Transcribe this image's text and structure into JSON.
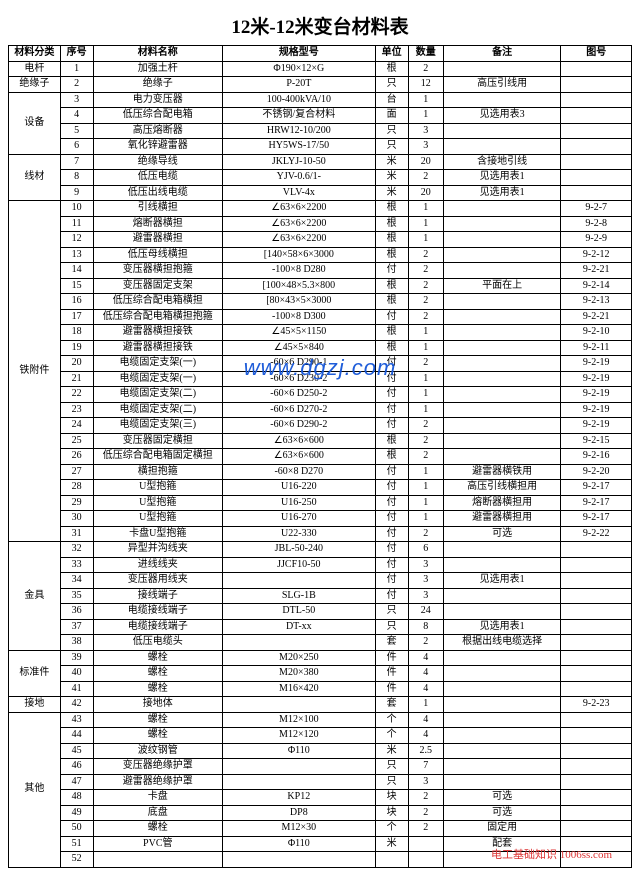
{
  "title": "12米-12米变台材料表",
  "headers": [
    "材料分类",
    "序号",
    "材料名称",
    "规格型号",
    "单位",
    "数量",
    "备注",
    "图号"
  ],
  "groups": [
    {
      "cat": "电杆",
      "rows": [
        [
          "1",
          "加强土杆",
          "Φ190×12×G",
          "根",
          "2",
          "",
          ""
        ]
      ]
    },
    {
      "cat": "绝缘子",
      "rows": [
        [
          "2",
          "绝缘子",
          "P-20T",
          "只",
          "12",
          "高压引线用",
          ""
        ]
      ]
    },
    {
      "cat": "设备",
      "rows": [
        [
          "3",
          "电力变压器",
          "100-400kVA/10",
          "台",
          "1",
          "",
          ""
        ],
        [
          "4",
          "低压综合配电箱",
          "不锈钢/复合材料",
          "面",
          "1",
          "见选用表3",
          ""
        ],
        [
          "5",
          "高压熔断器",
          "HRW12-10/200",
          "只",
          "3",
          "",
          ""
        ],
        [
          "6",
          "氧化锌避雷器",
          "HY5WS-17/50",
          "只",
          "3",
          "",
          ""
        ]
      ]
    },
    {
      "cat": "线材",
      "rows": [
        [
          "7",
          "绝缘导线",
          "JKLYJ-10-50",
          "米",
          "20",
          "含接地引线",
          ""
        ],
        [
          "8",
          "低压电缆",
          "YJV-0.6/1-",
          "米",
          "2",
          "见选用表1",
          ""
        ],
        [
          "9",
          "低压出线电缆",
          "VLV-4x",
          "米",
          "20",
          "见选用表1",
          ""
        ]
      ]
    },
    {
      "cat": "铁附件",
      "rows": [
        [
          "10",
          "引线横担",
          "∠63×6×2200",
          "根",
          "1",
          "",
          "9-2-7"
        ],
        [
          "11",
          "熔断器横担",
          "∠63×6×2200",
          "根",
          "1",
          "",
          "9-2-8"
        ],
        [
          "12",
          "避雷器横担",
          "∠63×6×2200",
          "根",
          "1",
          "",
          "9-2-9"
        ],
        [
          "13",
          "低压母线横担",
          "[140×58×6×3000",
          "根",
          "2",
          "",
          "9-2-12"
        ],
        [
          "14",
          "变压器横担抱箍",
          "-100×8 D280",
          "付",
          "2",
          "",
          "9-2-21"
        ],
        [
          "15",
          "变压器固定支架",
          "[100×48×5.3×800",
          "根",
          "2",
          "平面在上",
          "9-2-14"
        ],
        [
          "16",
          "低压综合配电箱横担",
          "[80×43×5×3000",
          "根",
          "2",
          "",
          "9-2-13"
        ],
        [
          "17",
          "低压综合配电箱横担抱箍",
          "-100×8 D300",
          "付",
          "2",
          "",
          "9-2-21"
        ],
        [
          "18",
          "避雷器横担接铁",
          "∠45×5×1150",
          "根",
          "1",
          "",
          "9-2-10"
        ],
        [
          "19",
          "避雷器横担接铁",
          "∠45×5×840",
          "根",
          "1",
          "",
          "9-2-11"
        ],
        [
          "20",
          "电缆固定支架(一)",
          "-60×6 D290-1",
          "付",
          "2",
          "",
          "9-2-19"
        ],
        [
          "21",
          "电缆固定支架(一)",
          "-60×6 D230-2",
          "付",
          "1",
          "",
          "9-2-19"
        ],
        [
          "22",
          "电缆固定支架(二)",
          "-60×6 D250-2",
          "付",
          "1",
          "",
          "9-2-19"
        ],
        [
          "23",
          "电缆固定支架(二)",
          "-60×6 D270-2",
          "付",
          "1",
          "",
          "9-2-19"
        ],
        [
          "24",
          "电缆固定支架(三)",
          "-60×6 D290-2",
          "付",
          "2",
          "",
          "9-2-19"
        ],
        [
          "25",
          "变压器固定横担",
          "∠63×6×600",
          "根",
          "2",
          "",
          "9-2-15"
        ],
        [
          "26",
          "低压综合配电箱固定横担",
          "∠63×6×600",
          "根",
          "2",
          "",
          "9-2-16"
        ],
        [
          "27",
          "横担抱箍",
          "-60×8 D270",
          "付",
          "1",
          "避雷器横铁用",
          "9-2-20"
        ],
        [
          "28",
          "U型抱箍",
          "U16-220",
          "付",
          "1",
          "高压引线横担用",
          "9-2-17"
        ],
        [
          "29",
          "U型抱箍",
          "U16-250",
          "付",
          "1",
          "熔断器横担用",
          "9-2-17"
        ],
        [
          "30",
          "U型抱箍",
          "U16-270",
          "付",
          "1",
          "避雷器横担用",
          "9-2-17"
        ],
        [
          "31",
          "卡盘U型抱箍",
          "U22-330",
          "付",
          "2",
          "可选",
          "9-2-22"
        ]
      ]
    },
    {
      "cat": "金具",
      "rows": [
        [
          "32",
          "异型并沟线夹",
          "JBL-50-240",
          "付",
          "6",
          "",
          ""
        ],
        [
          "33",
          "进线线夹",
          "JJCF10-50",
          "付",
          "3",
          "",
          ""
        ],
        [
          "34",
          "变压器用线夹",
          "",
          "付",
          "3",
          "见选用表1",
          ""
        ],
        [
          "35",
          "接线端子",
          "SLG-1B",
          "付",
          "3",
          "",
          ""
        ],
        [
          "36",
          "电缆接线端子",
          "DTL-50",
          "只",
          "24",
          "",
          ""
        ],
        [
          "37",
          "电缆接线端子",
          "DT-xx",
          "只",
          "8",
          "见选用表1",
          ""
        ],
        [
          "38",
          "低压电缆头",
          "",
          "套",
          "2",
          "根据出线电缆选择",
          ""
        ]
      ]
    },
    {
      "cat": "标准件",
      "rows": [
        [
          "39",
          "螺栓",
          "M20×250",
          "件",
          "4",
          "",
          ""
        ],
        [
          "40",
          "螺栓",
          "M20×380",
          "件",
          "4",
          "",
          ""
        ],
        [
          "41",
          "螺栓",
          "M16×420",
          "件",
          "4",
          "",
          ""
        ]
      ]
    },
    {
      "cat": "接地",
      "rows": [
        [
          "42",
          "接地体",
          "",
          "套",
          "1",
          "",
          "9-2-23"
        ]
      ]
    },
    {
      "cat": "其他",
      "rows": [
        [
          "43",
          "螺栓",
          "M12×100",
          "个",
          "4",
          "",
          ""
        ],
        [
          "44",
          "螺栓",
          "M12×120",
          "个",
          "4",
          "",
          ""
        ],
        [
          "45",
          "波纹钢管",
          "Φ110",
          "米",
          "2.5",
          "",
          ""
        ],
        [
          "46",
          "变压器绝缘护罩",
          "",
          "只",
          "7",
          "",
          ""
        ],
        [
          "47",
          "避雷器绝缘护罩",
          "",
          "只",
          "3",
          "",
          ""
        ],
        [
          "48",
          "卡盘",
          "KP12",
          "块",
          "2",
          "可选",
          ""
        ],
        [
          "49",
          "底盘",
          "DP8",
          "块",
          "2",
          "可选",
          ""
        ],
        [
          "50",
          "螺栓",
          "M12×30",
          "个",
          "2",
          "固定用",
          ""
        ],
        [
          "51",
          "PVC管",
          "Φ110",
          "米",
          "",
          "配套",
          ""
        ],
        [
          "52",
          "",
          "",
          "",
          "",
          "",
          ""
        ]
      ]
    }
  ],
  "watermark": "www.dgzj.com",
  "footer": "电工基础知识 1006ss.com"
}
